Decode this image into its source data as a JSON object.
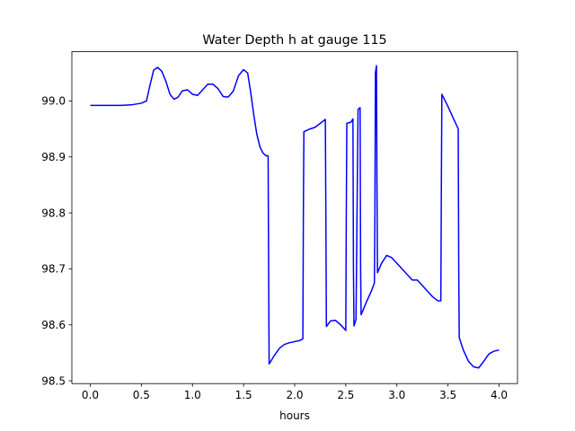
{
  "chart_data": {
    "type": "line",
    "title": "Water Depth h at gauge 115",
    "xlabel": "hours",
    "ylabel": "",
    "xlim": [
      -0.18,
      4.18
    ],
    "ylim": [
      98.495,
      99.088
    ],
    "xticks": [
      "0.0",
      "0.5",
      "1.0",
      "1.5",
      "2.0",
      "2.5",
      "3.0",
      "3.5",
      "4.0"
    ],
    "yticks": [
      "98.5",
      "98.6",
      "98.7",
      "98.8",
      "98.9",
      "99.0"
    ],
    "grid": false,
    "line_color": "#0000ff",
    "series": [
      {
        "name": "",
        "x": [
          0.0,
          0.1,
          0.2,
          0.3,
          0.4,
          0.5,
          0.55,
          0.58,
          0.62,
          0.66,
          0.7,
          0.74,
          0.78,
          0.82,
          0.86,
          0.9,
          0.95,
          1.0,
          1.05,
          1.1,
          1.15,
          1.2,
          1.25,
          1.3,
          1.35,
          1.4,
          1.45,
          1.5,
          1.54,
          1.57,
          1.6,
          1.63,
          1.66,
          1.69,
          1.72,
          1.74,
          1.745,
          1.75,
          1.8,
          1.85,
          1.9,
          1.95,
          2.0,
          2.05,
          2.08,
          2.085,
          2.09,
          2.15,
          2.2,
          2.25,
          2.3,
          2.305,
          2.31,
          2.35,
          2.4,
          2.45,
          2.5,
          2.505,
          2.51,
          2.55,
          2.57,
          2.575,
          2.58,
          2.6,
          2.62,
          2.64,
          2.645,
          2.65,
          2.7,
          2.75,
          2.78,
          2.785,
          2.79,
          2.8,
          2.805,
          2.81,
          2.85,
          2.9,
          2.95,
          3.0,
          3.05,
          3.1,
          3.15,
          3.2,
          3.25,
          3.3,
          3.35,
          3.4,
          3.43,
          3.435,
          3.44,
          3.5,
          3.55,
          3.6,
          3.605,
          3.61,
          3.65,
          3.7,
          3.75,
          3.8,
          3.85,
          3.9,
          3.95,
          4.0
        ],
        "y": [
          98.992,
          98.992,
          98.992,
          98.992,
          98.993,
          98.996,
          99.0,
          99.025,
          99.055,
          99.06,
          99.053,
          99.035,
          99.012,
          99.003,
          99.007,
          99.018,
          99.02,
          99.012,
          99.01,
          99.02,
          99.03,
          99.03,
          99.022,
          99.008,
          99.007,
          99.018,
          99.045,
          99.056,
          99.05,
          99.015,
          98.975,
          98.94,
          98.918,
          98.907,
          98.902,
          98.902,
          98.7,
          98.53,
          98.545,
          98.558,
          98.565,
          98.568,
          98.57,
          98.572,
          98.575,
          98.8,
          98.945,
          98.95,
          98.953,
          98.96,
          98.967,
          98.8,
          98.597,
          98.607,
          98.608,
          98.6,
          98.59,
          98.8,
          98.96,
          98.962,
          98.968,
          98.7,
          98.598,
          98.61,
          98.985,
          98.988,
          98.7,
          98.618,
          98.64,
          98.66,
          98.675,
          98.8,
          99.05,
          99.063,
          98.85,
          98.693,
          98.71,
          98.724,
          98.72,
          98.71,
          98.7,
          98.69,
          98.68,
          98.68,
          98.67,
          98.66,
          98.65,
          98.643,
          98.643,
          98.85,
          99.012,
          98.99,
          98.97,
          98.95,
          98.7,
          98.577,
          98.555,
          98.535,
          98.525,
          98.523,
          98.535,
          98.548,
          98.553,
          98.555
        ]
      }
    ]
  }
}
